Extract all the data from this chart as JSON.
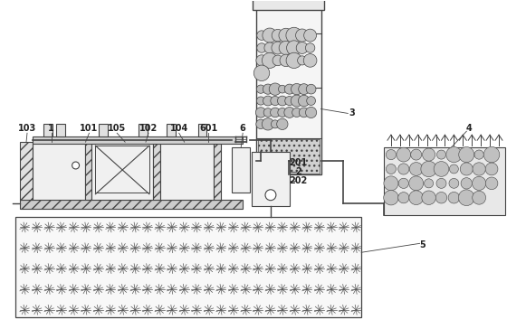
{
  "fig_width": 5.81,
  "fig_height": 3.64,
  "dpi": 100,
  "bg_color": "#ffffff",
  "lc": "#444444",
  "lw": 0.8
}
